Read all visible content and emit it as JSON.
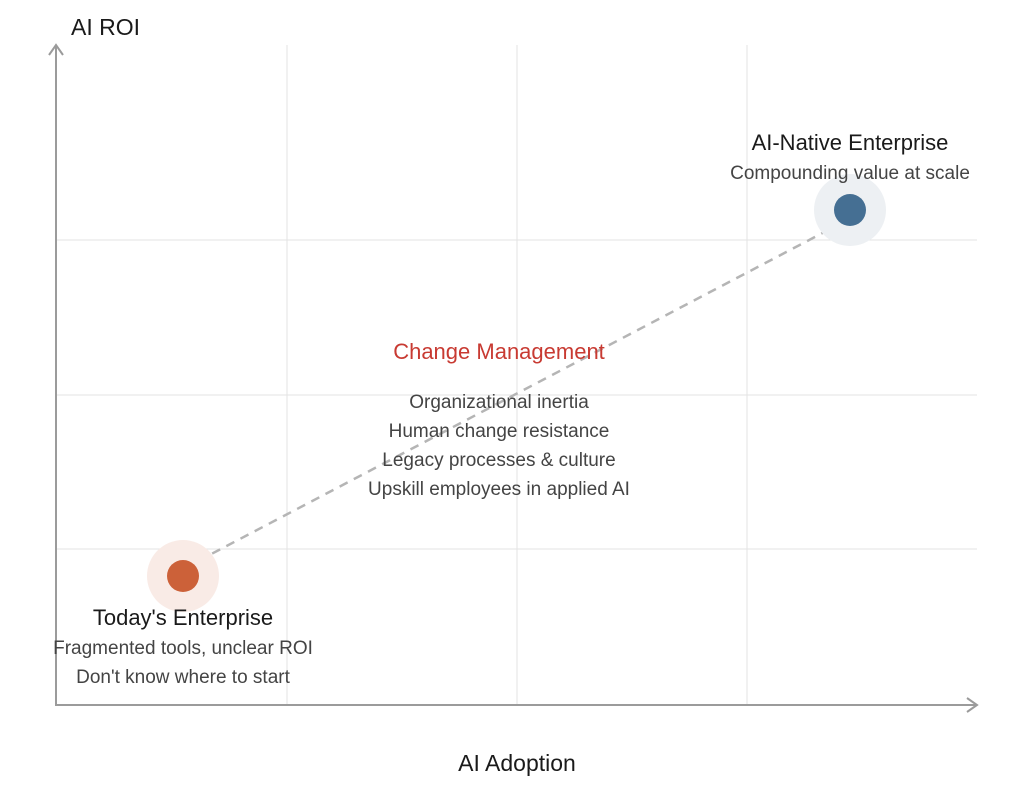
{
  "axes": {
    "y_label": "AI ROI",
    "x_label": "AI Adoption"
  },
  "today": {
    "title": "Today's Enterprise",
    "lines": [
      "Fragmented tools, unclear ROI",
      "Don't know where to start"
    ],
    "color": "#cc6139"
  },
  "native": {
    "title": "AI-Native Enterprise",
    "lines": [
      "Compounding value at scale"
    ],
    "color": "#456f93"
  },
  "change": {
    "title": "Change Management",
    "color": "#c83a32",
    "lines": [
      "Organizational inertia",
      "Human change resistance",
      "Legacy processes & culture",
      "Upskill employees in applied AI"
    ]
  }
}
